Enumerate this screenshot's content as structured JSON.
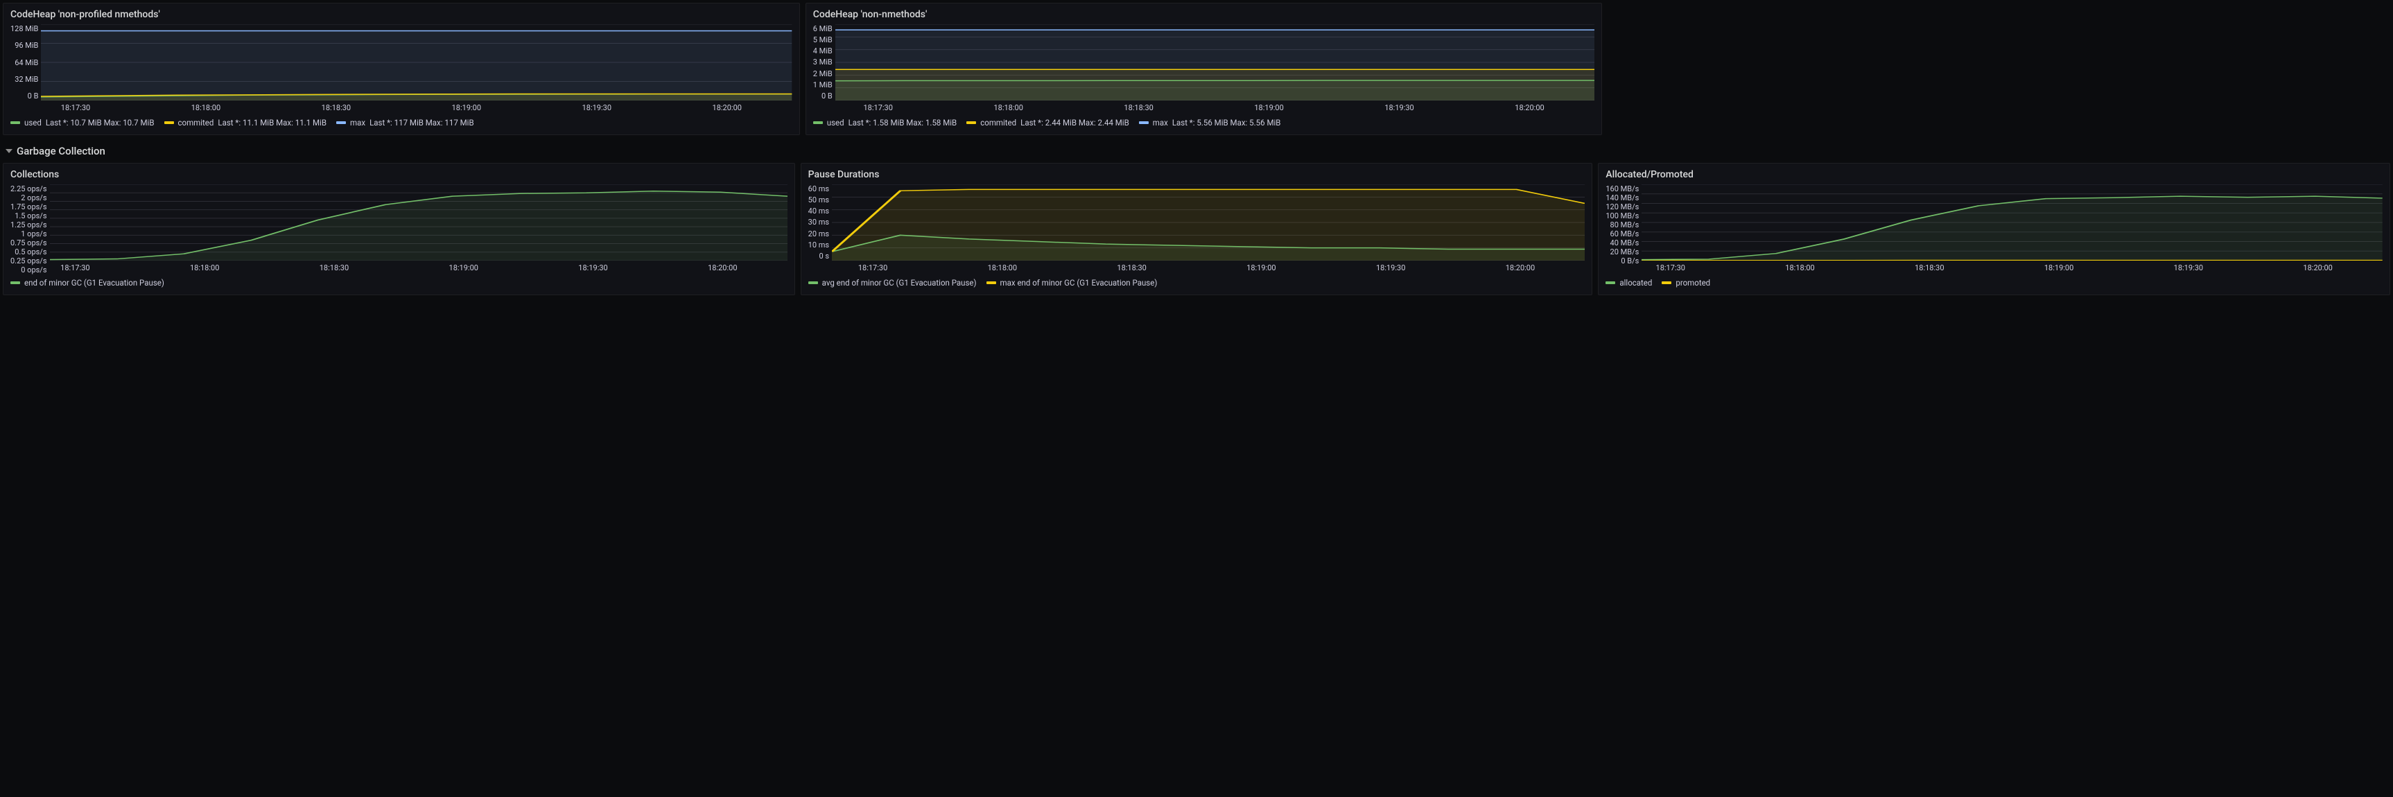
{
  "colors": {
    "green": "#73bf69",
    "yellow": "#f2cc0c",
    "blue": "#8ab8ff",
    "panel_bg": "#111217",
    "fill_opacity": 0.1
  },
  "section": {
    "title": "Garbage Collection"
  },
  "x_ticks": [
    "18:17:30",
    "18:18:00",
    "18:18:30",
    "18:19:00",
    "18:19:30",
    "18:20:00"
  ],
  "panels": {
    "codeheap_nonprofiled": {
      "title": "CodeHeap 'non-profiled nmethods'",
      "y_ticks": [
        "128 MiB",
        "96 MiB",
        "64 MiB",
        "32 MiB",
        "0 B"
      ],
      "ylim": [
        0,
        128
      ],
      "series": {
        "used": {
          "color": "#73bf69",
          "label": "used",
          "data": [
            6,
            7,
            8,
            9,
            9.5,
            10,
            10.3,
            10.5,
            10.6,
            10.7,
            10.7,
            10.7
          ],
          "last": "10.7 MiB",
          "max": "10.7 MiB"
        },
        "commited": {
          "color": "#f2cc0c",
          "label": "commited",
          "data": [
            7,
            8,
            9,
            9.5,
            10,
            10.5,
            10.8,
            11,
            11,
            11.1,
            11.1,
            11.1
          ],
          "last": "11.1 MiB",
          "max": "11.1 MiB"
        },
        "max": {
          "color": "#8ab8ff",
          "label": "max",
          "data": [
            117,
            117,
            117,
            117,
            117,
            117,
            117,
            117,
            117,
            117,
            117,
            117
          ],
          "last": "117 MiB",
          "max": "117 MiB"
        }
      }
    },
    "codeheap_nonnmethods": {
      "title": "CodeHeap 'non-nmethods'",
      "y_ticks": [
        "6 MiB",
        "5 MiB",
        "4 MiB",
        "3 MiB",
        "2 MiB",
        "1 MiB",
        "0 B"
      ],
      "ylim": [
        0,
        6
      ],
      "series": {
        "used": {
          "color": "#73bf69",
          "label": "used",
          "data": [
            1.55,
            1.56,
            1.56,
            1.56,
            1.57,
            1.57,
            1.57,
            1.58,
            1.58,
            1.58,
            1.58,
            1.58
          ],
          "last": "1.58 MiB",
          "max": "1.58 MiB"
        },
        "commited": {
          "color": "#f2cc0c",
          "label": "commited",
          "data": [
            2.44,
            2.44,
            2.44,
            2.44,
            2.44,
            2.44,
            2.44,
            2.44,
            2.44,
            2.44,
            2.44,
            2.44
          ],
          "last": "2.44 MiB",
          "max": "2.44 MiB"
        },
        "max": {
          "color": "#8ab8ff",
          "label": "max",
          "data": [
            5.56,
            5.56,
            5.56,
            5.56,
            5.56,
            5.56,
            5.56,
            5.56,
            5.56,
            5.56,
            5.56,
            5.56
          ],
          "last": "5.56 MiB",
          "max": "5.56 MiB"
        }
      }
    },
    "collections": {
      "title": "Collections",
      "y_ticks": [
        "2.25 ops/s",
        "2 ops/s",
        "1.75 ops/s",
        "1.5 ops/s",
        "1.25 ops/s",
        "1 ops/s",
        "0.75 ops/s",
        "0.5 ops/s",
        "0.25 ops/s",
        "0 ops/s"
      ],
      "ylim": [
        0,
        2.25
      ],
      "series": {
        "minor": {
          "color": "#73bf69",
          "label": "end of minor GC (G1 Evacuation Pause)",
          "data": [
            0.03,
            0.05,
            0.2,
            0.6,
            1.2,
            1.65,
            1.9,
            1.98,
            2.0,
            2.05,
            2.02,
            1.9
          ]
        }
      }
    },
    "pause": {
      "title": "Pause Durations",
      "y_ticks": [
        "60 ms",
        "50 ms",
        "40 ms",
        "30 ms",
        "20 ms",
        "10 ms",
        "0 s"
      ],
      "ylim": [
        0,
        60
      ],
      "series": {
        "avg": {
          "color": "#73bf69",
          "label": "avg end of minor GC (G1 Evacuation Pause)",
          "data": [
            7,
            20,
            17,
            15,
            13,
            12,
            11,
            10,
            10,
            9,
            9,
            9
          ]
        },
        "max": {
          "color": "#f2cc0c",
          "label": "max end of minor GC (G1 Evacuation Pause)",
          "data": [
            7,
            55,
            56,
            56,
            56,
            56,
            56,
            56,
            56,
            56,
            56,
            45
          ]
        }
      }
    },
    "alloc": {
      "title": "Allocated/Promoted",
      "y_ticks": [
        "160 MB/s",
        "140 MB/s",
        "120 MB/s",
        "100 MB/s",
        "80 MB/s",
        "60 MB/s",
        "40 MB/s",
        "20 MB/s",
        "0 B/s"
      ],
      "ylim": [
        0,
        160
      ],
      "series": {
        "allocated": {
          "color": "#73bf69",
          "label": "allocated",
          "data": [
            2,
            3,
            15,
            45,
            85,
            115,
            130,
            132,
            135,
            133,
            135,
            131
          ]
        },
        "promoted": {
          "color": "#f2cc0c",
          "label": "promoted",
          "data": [
            0.3,
            0.3,
            0.4,
            0.4,
            0.5,
            0.5,
            0.5,
            0.5,
            0.5,
            0.5,
            0.5,
            0.5
          ]
        }
      }
    }
  }
}
